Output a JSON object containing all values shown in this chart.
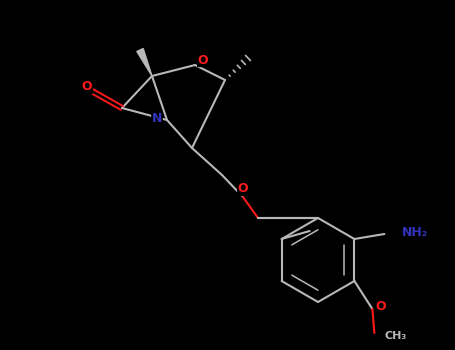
{
  "bg_color": "#000000",
  "bond_color": "#b8b8b8",
  "o_color": "#ff1a1a",
  "n_color": "#3333bb",
  "figsize": [
    4.55,
    3.5
  ],
  "dpi": 100,
  "xlim": [
    0,
    455
  ],
  "ylim": [
    0,
    350
  ]
}
